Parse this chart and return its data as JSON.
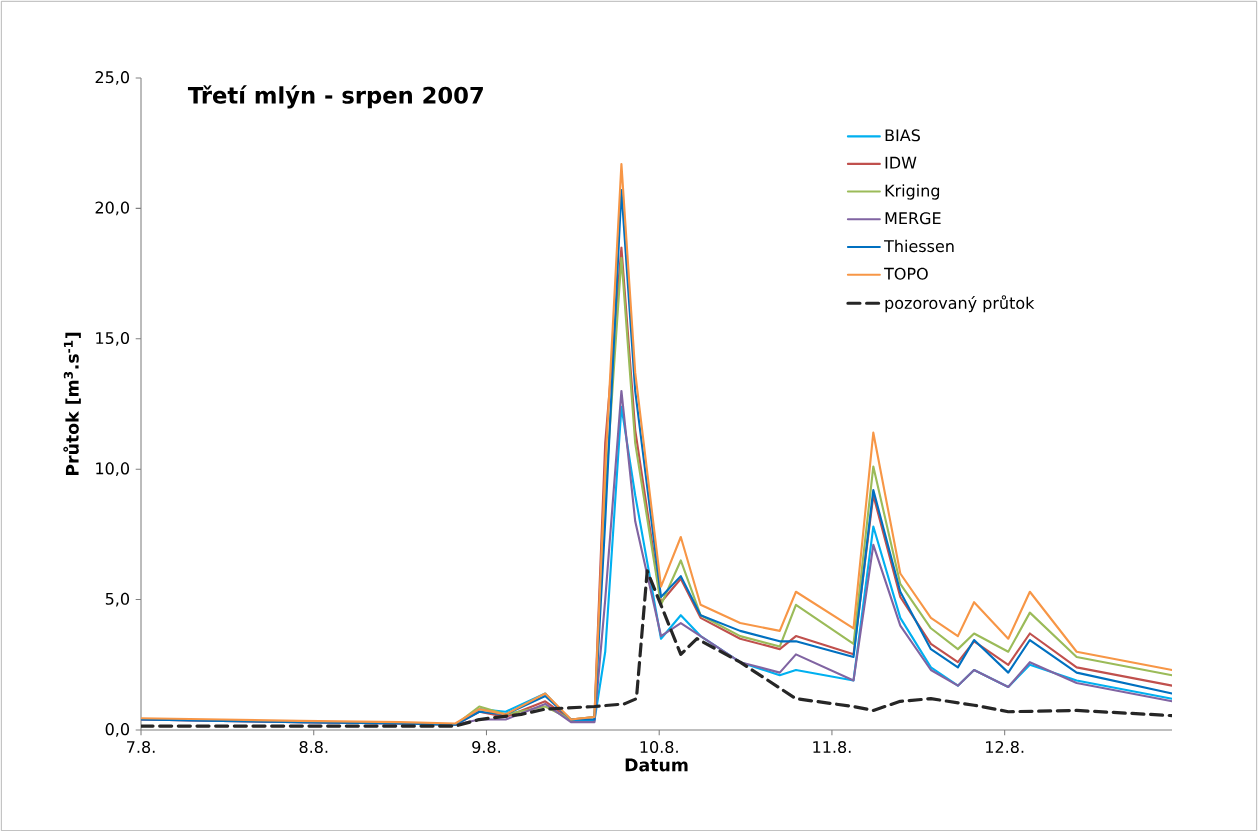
{
  "chart_data": {
    "type": "line",
    "title": "**Třetí mlýn - srpen 2007**",
    "xlabel": "Datum",
    "ylabel": "Průtok [m$^{3}$.s$^{-1}$]",
    "x": [
      "2007-08-07T00:00",
      "2007-08-07T11:15",
      "2007-08-07T22:00",
      "2007-08-08T12:00",
      "2007-08-08T19:40",
      "2007-08-08T23:00",
      "2007-08-09T02:40",
      "2007-08-09T08:10",
      "2007-08-09T11:45",
      "2007-08-09T15:00",
      "2007-08-09T16:30",
      "2007-08-09T18:45",
      "2007-08-09T20:40",
      "2007-08-10T00:15",
      "2007-08-10T03:00",
      "2007-08-10T05:45",
      "2007-08-10T11:15",
      "2007-08-10T16:45",
      "2007-08-10T19:00",
      "2007-08-11T03:00",
      "2007-08-11T05:45",
      "2007-08-11T09:30",
      "2007-08-11T13:45",
      "2007-08-11T17:30",
      "2007-08-11T19:45",
      "2007-08-12T00:30",
      "2007-08-12T03:30",
      "2007-08-12T10:00",
      "2007-08-12T23:15"
    ],
    "series": [
      {
        "name": "BIAS",
        "color": "#00b0f0",
        "values": [
          null,
          null,
          null,
          null,
          0.2,
          0.8,
          0.7,
          1.4,
          0.35,
          0.35,
          3,
          12.4,
          9,
          3.5,
          4.4,
          3.6,
          2.6,
          2.1,
          2.3,
          1.9,
          7.8,
          4.3,
          2.4,
          1.7,
          2.3,
          1.65,
          2.5,
          1.9,
          1.2
        ]
      },
      {
        "name": "IDW",
        "color": "#c0504d",
        "values": [
          0.4,
          0.35,
          0.3,
          0.25,
          0.2,
          0.7,
          0.5,
          1.1,
          0.4,
          0.5,
          11,
          18.5,
          11.5,
          4.9,
          5.8,
          4.3,
          3.5,
          3.1,
          3.6,
          2.9,
          9.0,
          5.1,
          3.3,
          2.6,
          3.4,
          2.5,
          3.7,
          2.4,
          1.7
        ]
      },
      {
        "name": "Kriging",
        "color": "#9bbb59",
        "values": [
          null,
          null,
          null,
          0.25,
          0.2,
          0.9,
          0.6,
          0.9,
          0.4,
          0.5,
          9,
          18.1,
          11,
          4.8,
          6.5,
          4.4,
          3.6,
          3.2,
          4.8,
          3.3,
          10.1,
          5.6,
          3.9,
          3.1,
          3.7,
          3.0,
          4.5,
          2.8,
          2.1
        ]
      },
      {
        "name": "MERGE",
        "color": "#8064a2",
        "values": [
          0.4,
          0.35,
          0.3,
          0.25,
          0.2,
          0.4,
          0.4,
          1.0,
          0.3,
          0.3,
          5,
          13.0,
          8,
          3.6,
          4.1,
          3.6,
          2.6,
          2.2,
          2.9,
          1.9,
          7.1,
          4.0,
          2.3,
          1.7,
          2.3,
          1.65,
          2.6,
          1.8,
          1.1
        ]
      },
      {
        "name": "Thiessen",
        "color": "#0070c0",
        "values": [
          0.4,
          0.35,
          0.3,
          0.25,
          0.2,
          0.7,
          0.6,
          1.3,
          0.4,
          0.4,
          8,
          20.7,
          13,
          5.1,
          5.9,
          4.4,
          3.8,
          3.4,
          3.4,
          2.8,
          9.2,
          5.3,
          3.1,
          2.4,
          3.45,
          2.2,
          3.45,
          2.2,
          1.4
        ]
      },
      {
        "name": "TOPO",
        "color": "#f79646",
        "values": [
          0.45,
          0.4,
          0.35,
          0.3,
          0.25,
          0.8,
          0.6,
          1.4,
          0.4,
          0.5,
          10,
          21.7,
          13.7,
          5.5,
          7.4,
          4.8,
          4.1,
          3.8,
          5.3,
          3.9,
          11.4,
          6.0,
          4.3,
          3.6,
          4.9,
          3.5,
          5.3,
          3.0,
          2.3
        ]
      },
      {
        "name": "pozorovaný průtok",
        "color": "#262626",
        "line_style": "dashed",
        "x": [
          "2007-08-07T00:00",
          "2007-08-07T12:00",
          "2007-08-08T00:00",
          "2007-08-08T12:00",
          "2007-08-08T19:40",
          "2007-08-08T23:00",
          "2007-08-09T04:50",
          "2007-08-09T08:10",
          "2007-08-09T15:00",
          "2007-08-09T19:10",
          "2007-08-09T20:50",
          "2007-08-09T22:20",
          "2007-08-10T03:00",
          "2007-08-10T05:15",
          "2007-08-10T11:15",
          "2007-08-10T19:00",
          "2007-08-11T03:00",
          "2007-08-11T05:45",
          "2007-08-11T09:30",
          "2007-08-11T13:45",
          "2007-08-11T19:45",
          "2007-08-12T00:30",
          "2007-08-12T10:00",
          "2007-08-12T23:15"
        ],
        "values": [
          0.15,
          0.15,
          0.15,
          0.15,
          0.15,
          0.4,
          0.6,
          0.8,
          0.9,
          1.0,
          1.2,
          6.1,
          2.9,
          3.5,
          2.6,
          1.2,
          0.9,
          0.75,
          1.1,
          1.2,
          0.95,
          0.7,
          0.75,
          0.55
        ]
      }
    ],
    "xlim": [
      "2007-08-07T00:00",
      "2007-08-12T23:15"
    ],
    "ylim": [
      0,
      25
    ],
    "xticks": [
      {
        "value": "2007-08-07",
        "label": "7.8."
      },
      {
        "value": "2007-08-08",
        "label": "8.8."
      },
      {
        "value": "2007-08-09",
        "label": "9.8."
      },
      {
        "value": "2007-08-10",
        "label": "10.8."
      },
      {
        "value": "2007-08-11",
        "label": "11.8."
      },
      {
        "value": "2007-08-12",
        "label": "12.8."
      }
    ],
    "yticks": [
      {
        "value": 0,
        "label": "0,0"
      },
      {
        "value": 5,
        "label": "5,0"
      },
      {
        "value": 10,
        "label": "10,0"
      },
      {
        "value": 15,
        "label": "15,0"
      },
      {
        "value": 20,
        "label": "20,0"
      },
      {
        "value": 25,
        "label": "25,0"
      }
    ],
    "legend": "top right"
  }
}
